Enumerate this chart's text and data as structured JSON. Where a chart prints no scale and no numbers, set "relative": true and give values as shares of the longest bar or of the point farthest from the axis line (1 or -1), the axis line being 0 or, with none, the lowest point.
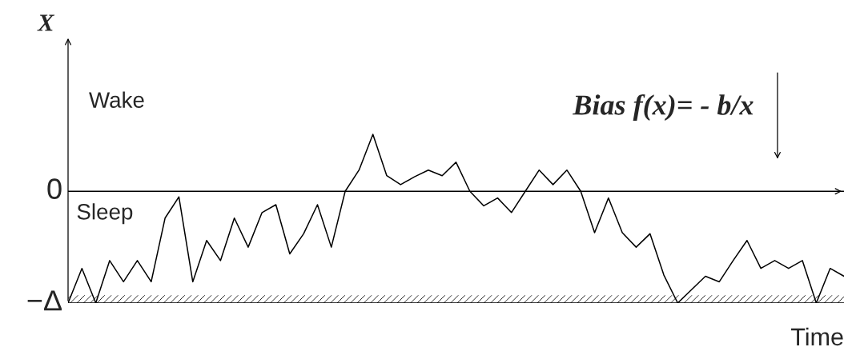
{
  "chart_data": {
    "type": "line",
    "relative": true,
    "ylabel": "X",
    "xlabel": "Time",
    "categories": [
      null,
      null,
      null,
      null,
      null,
      null,
      null,
      null,
      null,
      null,
      null,
      null,
      null,
      null,
      null,
      null,
      null,
      null,
      null,
      null,
      null,
      null,
      null,
      null,
      null,
      null,
      null,
      null,
      null,
      null,
      null,
      null,
      null,
      null,
      null,
      null,
      null,
      null,
      null,
      null,
      null,
      null,
      null,
      null,
      null,
      null,
      null,
      null,
      null,
      null,
      null,
      null,
      null,
      null,
      null,
      null,
      null
    ],
    "series": [
      {
        "color": "#000000",
        "values": [
          -1,
          -0.69,
          -1,
          -0.62,
          -0.81,
          -0.62,
          -0.81,
          -0.24,
          -0.05,
          -0.81,
          -0.44,
          -0.62,
          -0.24,
          -0.5,
          -0.19,
          -0.12,
          -0.56,
          -0.38,
          -0.12,
          -0.5,
          0,
          0.19,
          0.51,
          0.14,
          0.06,
          0.13,
          0.19,
          0.14,
          0.26,
          0,
          -0.13,
          -0.06,
          -0.19,
          0,
          0.19,
          0.06,
          0.19,
          0,
          -0.37,
          -0.06,
          -0.37,
          -0.5,
          -0.38,
          -0.75,
          -1,
          -0.88,
          -0.76,
          -0.81,
          -0.62,
          -0.44,
          -0.69,
          -0.62,
          -0.69,
          -0.62,
          -1,
          -0.69,
          -0.76
        ]
      }
    ],
    "ref_lines": [
      {
        "axis": "y",
        "value": 0,
        "label": "0",
        "color": "#000000"
      },
      {
        "axis": "y",
        "value": -1,
        "label": "−Δ",
        "color": "#000000"
      }
    ],
    "annotations": [
      "Wake",
      "Sleep",
      "Bias f(x)= - b/x"
    ],
    "legend": false,
    "marker": "none",
    "line_style": "solid"
  }
}
